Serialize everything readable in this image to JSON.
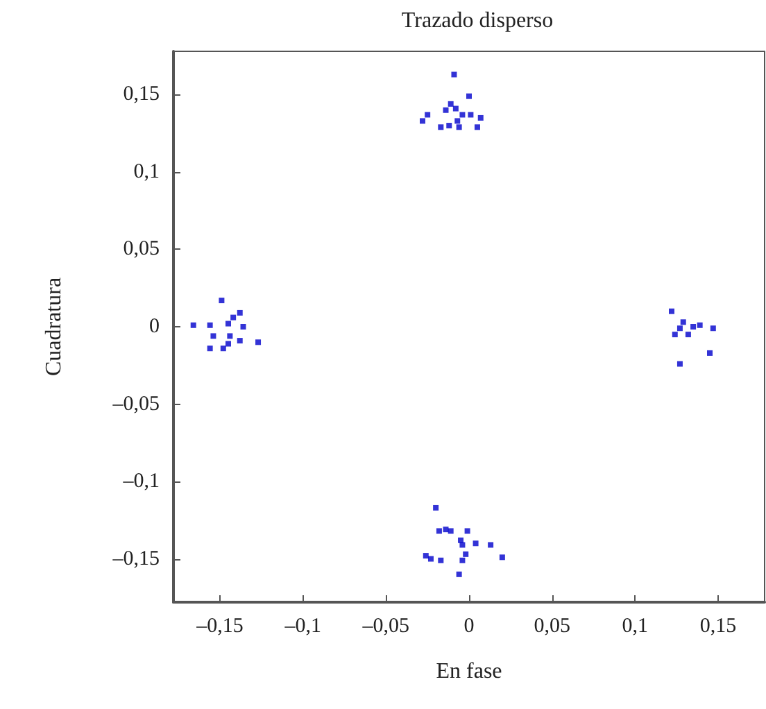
{
  "chart_data": {
    "type": "scatter",
    "title": "Trazado disperso",
    "xlabel": "En fase",
    "ylabel": "Cuadratura",
    "marker": "square",
    "grid": false,
    "xlim": [
      -0.178,
      0.178
    ],
    "ylim": [
      -0.178,
      0.178
    ],
    "xticks": [
      {
        "value": -0.15,
        "label": "–0,15"
      },
      {
        "value": -0.1,
        "label": "–0,1"
      },
      {
        "value": -0.05,
        "label": "–0,05"
      },
      0,
      {
        "value": 0.05,
        "label": "0,05"
      },
      {
        "value": 0.1,
        "label": "0,1"
      },
      {
        "value": 0.15,
        "label": "0,15"
      }
    ],
    "yticks": [
      {
        "value": -0.15,
        "label": "–0,15"
      },
      {
        "value": -0.1,
        "label": "–0,1"
      },
      {
        "value": -0.05,
        "label": "–0,05"
      },
      0,
      {
        "value": 0.05,
        "label": "0,05"
      },
      {
        "value": 0.1,
        "label": "0,1"
      },
      {
        "value": 0.15,
        "label": "0,15"
      }
    ],
    "series": [
      {
        "color": "#0000cc",
        "x": [
          -0.009,
          0,
          -0.028,
          -0.025,
          -0.017,
          -0.014,
          -0.011,
          -0.008,
          -0.012,
          -0.007,
          -0.004,
          0.001,
          0.007,
          0.005,
          -0.006,
          -0.166,
          -0.156,
          -0.149,
          -0.154,
          -0.156,
          -0.148,
          -0.145,
          -0.142,
          -0.138,
          -0.136,
          -0.138,
          -0.145,
          -0.127,
          -0.144,
          0.122,
          0.124,
          0.129,
          0.132,
          0.135,
          0.139,
          0.147,
          0.145,
          0.127,
          0.127,
          -0.02,
          -0.018,
          -0.014,
          -0.011,
          -0.001,
          -0.004,
          -0.005,
          0.004,
          0.013,
          0.02,
          -0.026,
          -0.023,
          -0.017,
          -0.004,
          -0.002,
          -0.006
        ],
        "values": [
          0.163,
          0.149,
          0.133,
          0.137,
          0.129,
          0.14,
          0.144,
          0.141,
          0.13,
          0.133,
          0.137,
          0.137,
          0.135,
          0.129,
          0.129,
          0.001,
          0.001,
          0.017,
          -0.006,
          -0.014,
          -0.014,
          0.002,
          0.006,
          0.009,
          0,
          -0.009,
          -0.011,
          -0.01,
          -0.006,
          0.01,
          -0.005,
          0.003,
          -0.005,
          0,
          0.001,
          -0.001,
          -0.017,
          -0.024,
          -0.001,
          -0.117,
          -0.132,
          -0.131,
          -0.132,
          -0.132,
          -0.141,
          -0.138,
          -0.14,
          -0.141,
          -0.149,
          -0.148,
          -0.15,
          -0.151,
          -0.151,
          -0.147,
          -0.16
        ]
      }
    ]
  }
}
